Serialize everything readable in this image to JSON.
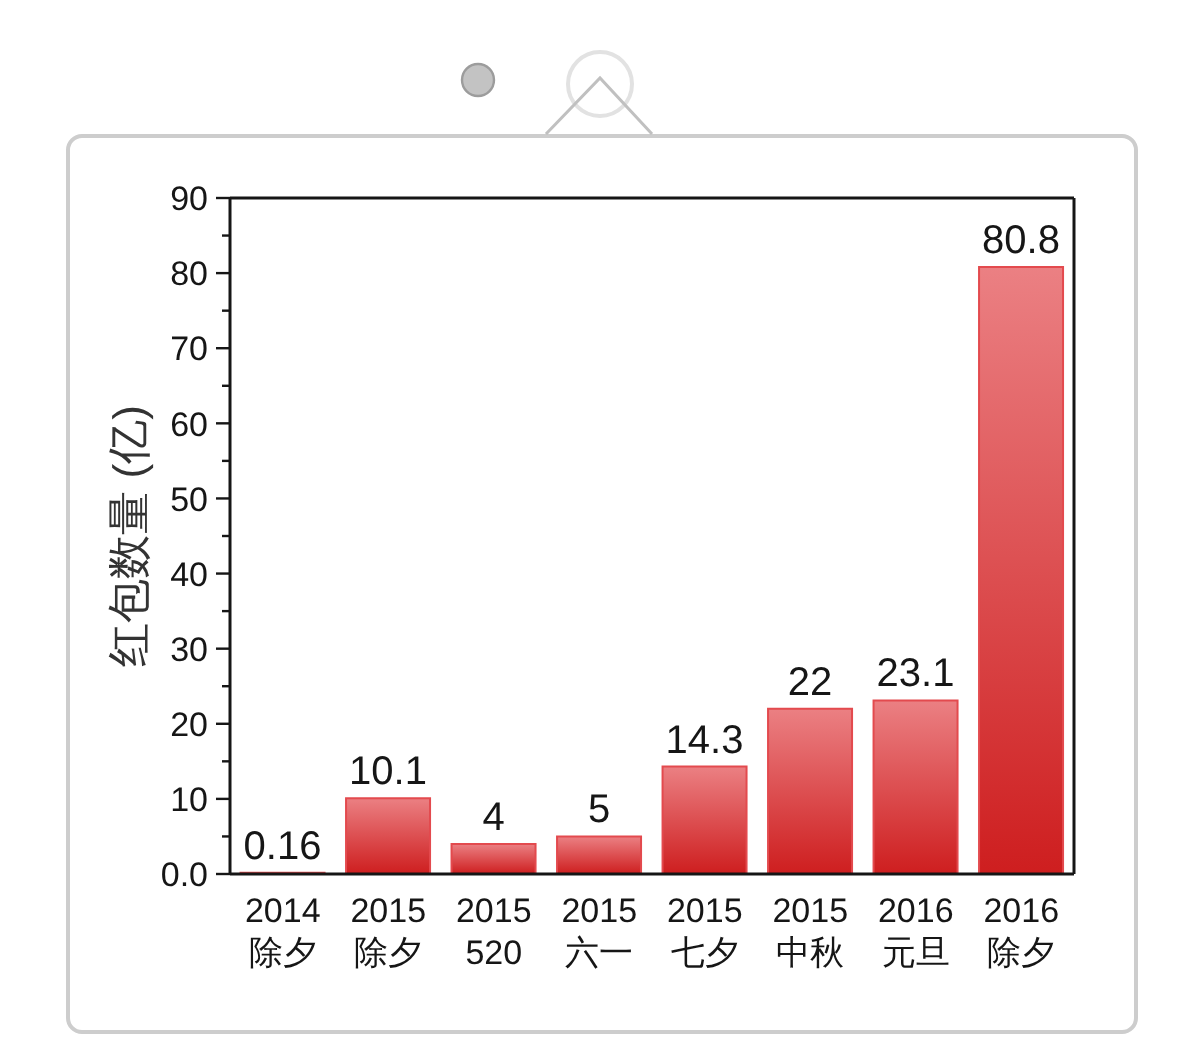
{
  "chart_data": {
    "type": "bar",
    "ylabel": "红包数量 (亿)",
    "categories": [
      "2014\n除夕",
      "2015\n除夕",
      "2015\n520",
      "2015\n六一",
      "2015\n七夕",
      "2015\n中秋",
      "2016\n元旦",
      "2016\n除夕"
    ],
    "values": [
      0.16,
      10.1,
      4,
      5,
      14.3,
      22,
      23.1,
      80.8
    ],
    "color": "#e34a4e",
    "ylim": [
      0,
      90
    ],
    "yticks": [
      {
        "value": 0,
        "label": "0.0"
      },
      {
        "value": 5,
        "label": null
      },
      10,
      {
        "value": 15,
        "label": null
      },
      20,
      {
        "value": 25,
        "label": null
      },
      30,
      {
        "value": 35,
        "label": null
      },
      40,
      {
        "value": 45,
        "label": null
      },
      50,
      {
        "value": 55,
        "label": null
      },
      60,
      {
        "value": 65,
        "label": null
      },
      70,
      {
        "value": 75,
        "label": null
      },
      80,
      {
        "value": 85,
        "label": null
      },
      90
    ],
    "data_labels": true
  }
}
